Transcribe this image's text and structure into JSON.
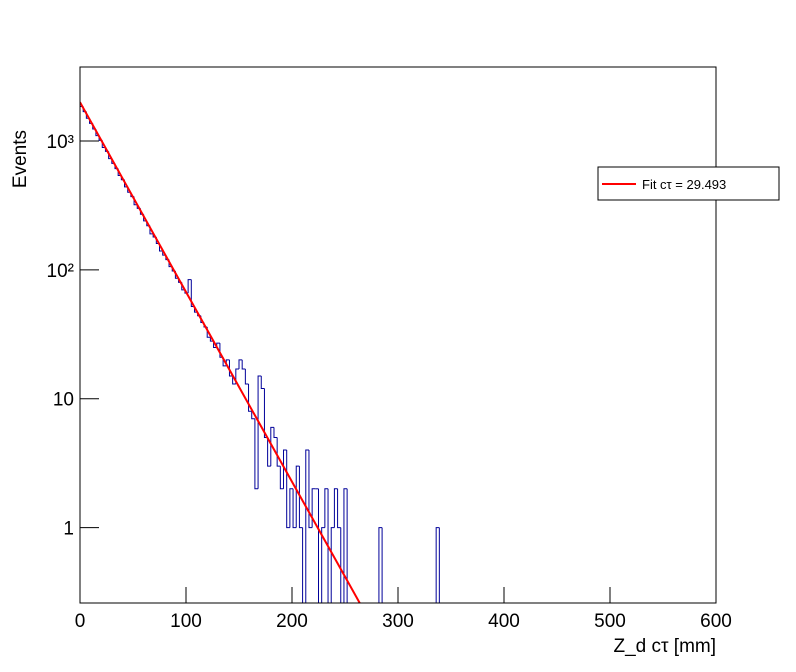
{
  "chart_data": {
    "type": "histogram",
    "x_label": "Z_d cτ [mm]",
    "y_label": "Events",
    "bins": [
      0,
      3,
      6,
      9,
      12,
      15,
      18,
      21,
      24,
      27,
      30,
      33,
      36,
      39,
      42,
      45,
      48,
      51,
      54,
      57,
      60,
      63,
      66,
      69,
      72,
      75,
      78,
      81,
      84,
      87,
      90,
      93,
      96,
      99,
      102,
      105,
      108,
      111,
      114,
      117,
      120,
      123,
      126,
      129,
      132,
      135,
      138,
      141,
      144,
      147,
      150,
      153,
      156,
      159,
      162,
      165,
      168,
      171,
      174,
      177,
      180,
      183,
      186,
      189,
      192,
      195,
      198,
      201,
      204,
      207,
      210,
      213,
      216,
      219,
      222,
      225,
      228,
      231,
      234,
      237,
      240,
      243,
      246,
      249,
      252,
      255,
      258,
      261,
      264,
      267,
      270,
      273,
      276,
      279,
      282,
      285,
      288,
      291,
      294,
      297,
      300,
      303,
      306,
      309,
      312,
      315,
      318,
      321,
      324,
      327,
      330,
      333,
      336,
      339,
      342,
      345
    ],
    "values": [
      1850,
      1690,
      1500,
      1370,
      1240,
      1100,
      1010,
      890,
      830,
      730,
      670,
      610,
      540,
      500,
      440,
      400,
      370,
      320,
      300,
      270,
      240,
      220,
      190,
      180,
      160,
      140,
      130,
      120,
      106,
      98,
      86,
      80,
      70,
      66,
      84,
      52,
      47,
      44,
      39,
      36,
      30,
      28,
      25,
      27,
      21,
      18,
      20,
      15,
      13,
      17,
      20,
      17,
      13,
      8,
      7,
      2,
      15,
      12,
      5,
      3,
      6,
      5,
      3,
      2,
      4,
      1,
      2,
      1,
      3,
      1,
      0,
      4,
      1,
      2,
      2,
      0,
      1,
      2,
      0,
      1,
      2,
      1,
      0,
      2,
      0,
      0,
      0,
      0,
      0,
      0,
      0,
      0,
      0,
      0,
      1,
      0,
      0,
      0,
      0,
      0,
      0,
      0,
      0,
      0,
      0,
      0,
      0,
      0,
      0,
      0,
      0,
      0,
      1,
      0,
      0
    ],
    "color": "#000099",
    "fit": {
      "name": "Fit cτ = 29.493",
      "color": "#ff0000",
      "x": [
        0,
        30,
        60,
        90,
        120,
        150,
        180,
        210,
        240,
        264
      ],
      "values": [
        2000,
        723.2,
        261.5,
        94.6,
        34.2,
        12.37,
        4.47,
        1.617,
        0.585,
        0.259
      ]
    },
    "xlim": [
      0,
      600
    ],
    "xticks": [
      0,
      100,
      200,
      300,
      400,
      500,
      600
    ],
    "ylim": [
      0.26,
      3750
    ],
    "log_y": true,
    "yticks": [
      1,
      10,
      {
        "value": 100,
        "label": "10²"
      },
      {
        "value": 1000,
        "label": "10³"
      }
    ],
    "legend": "upper right"
  }
}
